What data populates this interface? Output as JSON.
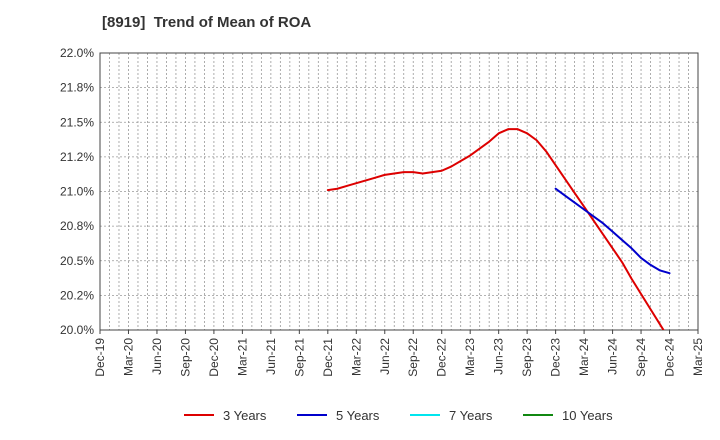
{
  "chart_data": {
    "type": "line",
    "title": "[8919]  Trend of Mean of ROA",
    "xlabel": "",
    "ylabel": "",
    "x_tick_labels": [
      "Dec-19",
      "Mar-20",
      "Jun-20",
      "Sep-20",
      "Dec-20",
      "Mar-21",
      "Jun-21",
      "Sep-21",
      "Dec-21",
      "Mar-22",
      "Jun-22",
      "Sep-22",
      "Dec-22",
      "Mar-23",
      "Jun-23",
      "Sep-23",
      "Dec-23",
      "Mar-24",
      "Jun-24",
      "Sep-24",
      "Dec-24",
      "Mar-25"
    ],
    "y_tick_labels": [
      "20.0%",
      "20.2%",
      "20.5%",
      "20.8%",
      "21.0%",
      "21.2%",
      "21.5%",
      "21.8%",
      "22.0%"
    ],
    "ylim": [
      20.0,
      22.0
    ],
    "grid": true,
    "legend_position": "bottom",
    "series": [
      {
        "name": "3 Years",
        "color": "#dd0000",
        "points": [
          [
            "Dec-21",
            21.01
          ],
          [
            "Jan-22",
            21.02
          ],
          [
            "Feb-22",
            21.04
          ],
          [
            "Mar-22",
            21.06
          ],
          [
            "Apr-22",
            21.08
          ],
          [
            "May-22",
            21.1
          ],
          [
            "Jun-22",
            21.12
          ],
          [
            "Jul-22",
            21.13
          ],
          [
            "Aug-22",
            21.14
          ],
          [
            "Sep-22",
            21.14
          ],
          [
            "Oct-22",
            21.13
          ],
          [
            "Nov-22",
            21.14
          ],
          [
            "Dec-22",
            21.15
          ],
          [
            "Jan-23",
            21.18
          ],
          [
            "Feb-23",
            21.22
          ],
          [
            "Mar-23",
            21.26
          ],
          [
            "Apr-23",
            21.31
          ],
          [
            "May-23",
            21.36
          ],
          [
            "Jun-23",
            21.42
          ],
          [
            "Jul-23",
            21.45
          ],
          [
            "Aug-23",
            21.45
          ],
          [
            "Sep-23",
            21.42
          ],
          [
            "Oct-23",
            21.37
          ],
          [
            "Nov-23",
            21.29
          ],
          [
            "Dec-23",
            21.19
          ],
          [
            "Jan-24",
            21.09
          ],
          [
            "Feb-24",
            20.99
          ],
          [
            "Mar-24",
            20.89
          ],
          [
            "Apr-24",
            20.79
          ],
          [
            "May-24",
            20.69
          ],
          [
            "Jun-24",
            20.59
          ],
          [
            "Jul-24",
            20.49
          ],
          [
            "Aug-24",
            20.37
          ],
          [
            "Sep-24",
            20.26
          ],
          [
            "Oct-24",
            20.15
          ],
          [
            "Nov-24",
            20.04
          ],
          [
            "Dec-24",
            19.93
          ]
        ]
      },
      {
        "name": "5 Years",
        "color": "#0000cc",
        "points": [
          [
            "Dec-23",
            21.02
          ],
          [
            "Jan-24",
            20.97
          ],
          [
            "Feb-24",
            20.92
          ],
          [
            "Mar-24",
            20.87
          ],
          [
            "Apr-24",
            20.82
          ],
          [
            "May-24",
            20.77
          ],
          [
            "Jun-24",
            20.71
          ],
          [
            "Jul-24",
            20.65
          ],
          [
            "Aug-24",
            20.59
          ],
          [
            "Sep-24",
            20.52
          ],
          [
            "Oct-24",
            20.47
          ],
          [
            "Nov-24",
            20.43
          ],
          [
            "Dec-24",
            20.41
          ]
        ]
      },
      {
        "name": "7 Years",
        "color": "#00e5ee",
        "points": []
      },
      {
        "name": "10 Years",
        "color": "#118811",
        "points": []
      }
    ]
  }
}
